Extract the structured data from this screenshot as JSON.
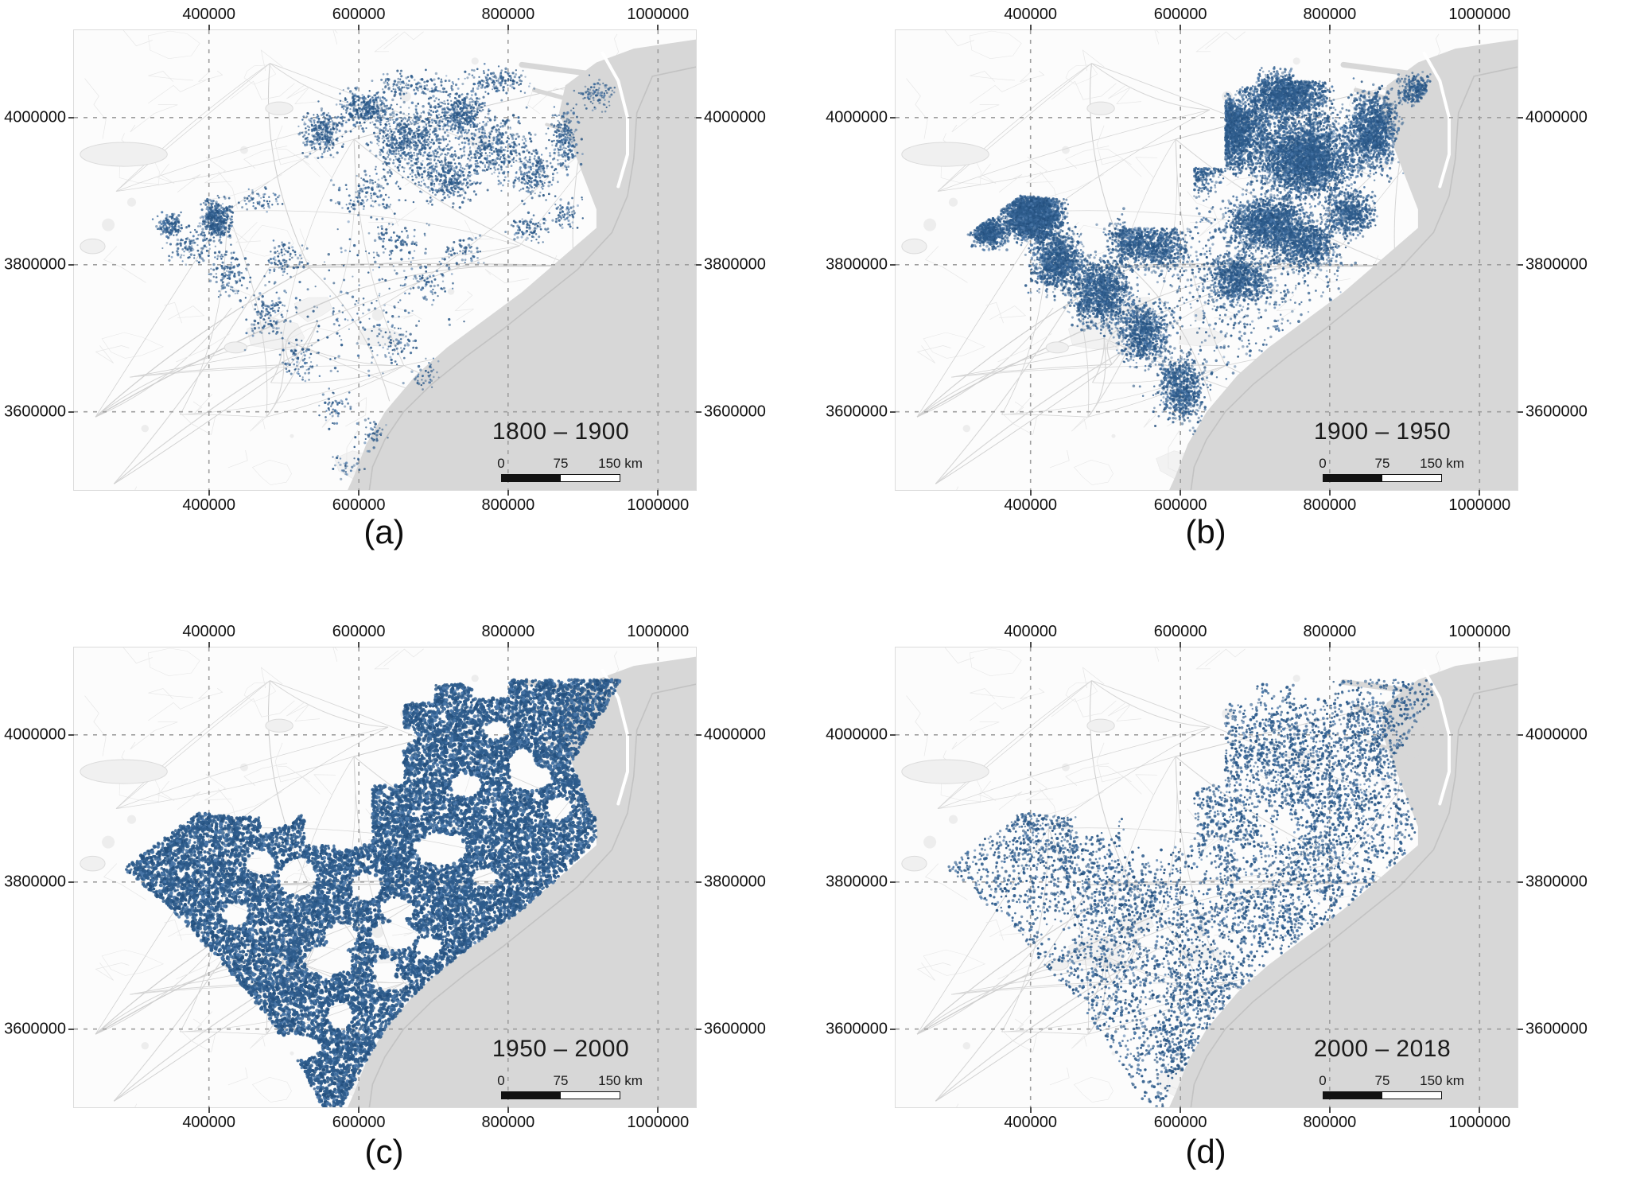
{
  "figure": {
    "description": "Four-panel map time series of mapped feature density over the Carolinas coastal plain, shown on a light road basemap with UTM coordinate grid.",
    "axis": {
      "x_ticks": [
        {
          "label": "400000",
          "pos": 0.217
        },
        {
          "label": "600000",
          "pos": 0.458
        },
        {
          "label": "800000",
          "pos": 0.698
        },
        {
          "label": "1000000",
          "pos": 0.939
        }
      ],
      "y_ticks": [
        {
          "label": "4000000",
          "pos": 0.19
        },
        {
          "label": "3800000",
          "pos": 0.51
        },
        {
          "label": "3600000",
          "pos": 0.83
        }
      ]
    },
    "scalebar": {
      "start_label": "0",
      "mid_label": "75",
      "end_label": "150 km"
    },
    "colors": {
      "data": "#2E5C8C",
      "data_dark": "#24507E",
      "data_light": "#4A77A8",
      "ocean": "#D7D7D7",
      "land": "#FCFCFC",
      "road": "#D6D6D6",
      "road_light": "#E6E6E6",
      "grid": "#9E9E9E",
      "contour": "#C2C2C2",
      "text": "#111111"
    },
    "geometry": {
      "coast": [
        [
          100,
          2
        ],
        [
          90,
          4
        ],
        [
          84,
          7
        ],
        [
          79,
          12
        ],
        [
          78,
          18
        ],
        [
          80,
          25
        ],
        [
          82,
          32
        ],
        [
          84,
          39
        ],
        [
          84,
          43
        ],
        [
          78,
          50
        ],
        [
          72,
          57
        ],
        [
          66,
          63
        ],
        [
          60,
          69
        ],
        [
          55,
          75
        ],
        [
          50,
          83
        ],
        [
          47,
          90
        ],
        [
          45,
          97
        ],
        [
          44,
          100
        ]
      ],
      "contour": [
        [
          100,
          8
        ],
        [
          93,
          10
        ],
        [
          90.5,
          18
        ],
        [
          90,
          28
        ],
        [
          89,
          36
        ],
        [
          86.5,
          44
        ],
        [
          81,
          52
        ],
        [
          75,
          58.5
        ],
        [
          69,
          65
        ],
        [
          63,
          71
        ],
        [
          57.5,
          77
        ],
        [
          53,
          83
        ],
        [
          50,
          89
        ],
        [
          48,
          95
        ],
        [
          47.5,
          100
        ]
      ],
      "banks": [
        [
          85,
          5
        ],
        [
          87.5,
          11
        ],
        [
          89,
          19
        ],
        [
          89,
          27
        ],
        [
          87.5,
          34
        ]
      ],
      "estuaries": [
        [
          [
            86,
            10
          ],
          [
            72,
            7.5
          ]
        ],
        [
          [
            85,
            17
          ],
          [
            74,
            13
          ]
        ],
        [
          [
            84.5,
            24
          ],
          [
            76,
            20.5
          ]
        ]
      ],
      "lakes": [
        [
          8,
          27,
          7,
          2.6
        ],
        [
          33,
          17,
          2.2,
          1.4
        ],
        [
          3,
          47,
          2,
          1.6
        ],
        [
          26,
          69,
          1.8,
          1.2
        ]
      ],
      "footprint": [
        [
          8,
          48
        ],
        [
          20,
          36
        ],
        [
          30,
          37
        ],
        [
          30,
          41
        ],
        [
          35,
          38
        ],
        [
          37,
          36
        ],
        [
          37,
          43
        ],
        [
          48,
          43
        ],
        [
          48,
          30
        ],
        [
          53,
          30
        ],
        [
          53,
          12
        ],
        [
          58,
          12
        ],
        [
          58,
          8
        ],
        [
          64,
          8
        ],
        [
          64,
          11
        ],
        [
          70,
          11
        ],
        [
          70,
          7
        ],
        [
          88,
          7
        ],
        [
          86,
          12
        ],
        [
          83,
          18
        ],
        [
          80,
          25
        ],
        [
          82,
          32
        ],
        [
          84,
          38
        ],
        [
          84,
          42
        ],
        [
          78,
          50
        ],
        [
          72,
          57
        ],
        [
          66,
          63
        ],
        [
          60,
          69
        ],
        [
          55,
          75
        ],
        [
          50,
          83
        ],
        [
          47,
          90
        ],
        [
          44,
          97
        ],
        [
          43,
          100
        ],
        [
          40,
          100
        ],
        [
          36,
          90
        ],
        [
          31,
          80
        ],
        [
          26,
          72
        ],
        [
          20,
          63
        ],
        [
          14,
          55
        ]
      ]
    },
    "panels": [
      {
        "id": "a",
        "caption": "(a)",
        "period": "1800 – 1900",
        "layer": {
          "mode": "clusters",
          "seed": 11,
          "dot_r": 1.4,
          "clip": false,
          "clusters": [
            [
              15.5,
              42.5,
              2.6,
              3,
              170
            ],
            [
              23,
              41,
              3,
              5,
              430
            ],
            [
              19,
              47,
              5,
              5,
              120
            ],
            [
              25,
              53,
              4,
              7,
              130
            ],
            [
              31,
              62,
              5,
              8,
              130
            ],
            [
              36,
              72,
              4,
              6,
              70
            ],
            [
              42,
              82,
              3,
              5,
              50
            ],
            [
              34,
              50,
              4,
              5,
              90
            ],
            [
              30,
              37,
              4,
              3,
              60
            ],
            [
              40,
              22,
              4,
              6,
              300
            ],
            [
              47,
              17,
              5,
              5,
              350
            ],
            [
              54,
              24,
              7,
              9,
              550
            ],
            [
              62,
              18,
              6,
              6,
              400
            ],
            [
              60,
              32,
              7,
              7,
              350
            ],
            [
              68,
              26,
              6,
              8,
              350
            ],
            [
              55,
              12,
              8,
              3.5,
              150
            ],
            [
              68,
              11,
              6,
              3.5,
              150
            ],
            [
              74,
              31,
              4,
              7,
              200
            ],
            [
              79,
              24,
              3,
              8,
              220
            ],
            [
              84,
              14,
              3.5,
              4,
              90
            ],
            [
              73,
              43,
              4,
              4,
              90
            ],
            [
              79,
              40,
              3,
              4,
              70
            ],
            [
              47,
              36,
              6,
              6,
              120
            ],
            [
              52,
              46,
              6,
              6,
              90
            ],
            [
              57,
              55,
              5,
              5,
              70
            ],
            [
              63,
              48,
              4,
              4,
              60
            ],
            [
              52,
              68,
              4,
              5,
              60
            ],
            [
              57,
              75,
              3,
              4,
              40
            ],
            [
              48,
              88,
              3,
              4,
              45
            ],
            [
              44,
              95,
              3,
              3,
              30
            ],
            [
              48,
              60,
              14,
              20,
              160
            ],
            [
              60,
              25,
              16,
              14,
              200
            ]
          ]
        }
      },
      {
        "id": "b",
        "caption": "(b)",
        "period": "1900 – 1950",
        "layer": {
          "mode": "clusters",
          "seed": 22,
          "dot_r": 1.5,
          "clip": true,
          "clusters": [
            [
              22,
              40,
              5.5,
              6.5,
              2800
            ],
            [
              15,
              44,
              3.5,
              4,
              600
            ],
            [
              26,
              50,
              5,
              8,
              1100
            ],
            [
              33,
              57,
              6,
              9,
              1200
            ],
            [
              40,
              66,
              5,
              8,
              800
            ],
            [
              46,
              78,
              4.5,
              8,
              700
            ],
            [
              51,
              88,
              3.5,
              5,
              300
            ],
            [
              38,
              46,
              5,
              6,
              600
            ],
            [
              43,
              47,
              5,
              7,
              500
            ],
            [
              52,
              22,
              9,
              10,
              3800
            ],
            [
              63,
              14,
              8,
              6,
              1600
            ],
            [
              66,
              28,
              9,
              10,
              2800
            ],
            [
              77,
              22,
              4.5,
              10,
              1300
            ],
            [
              60,
              42,
              8,
              7,
              1500
            ],
            [
              55,
              54,
              6,
              7,
              800
            ],
            [
              66,
              47,
              6,
              6,
              800
            ],
            [
              73,
              40,
              5,
              6,
              600
            ],
            [
              84,
              13,
              4,
              4,
              300
            ],
            [
              48,
              30,
              5,
              7,
              500
            ],
            [
              55,
              55,
              22,
              28,
              700
            ],
            [
              65,
              25,
              18,
              14,
              600
            ]
          ]
        }
      },
      {
        "id": "c",
        "caption": "(c)",
        "period": "1950 – 2000",
        "layer": {
          "mode": "fill",
          "seed": 33,
          "dot_r": 2.1,
          "attempts": 42000,
          "accept": 0.93,
          "rand_holes": 10,
          "holes": [
            [
              59,
              44,
              4,
              3.5
            ],
            [
              47,
              52,
              2.5,
              3
            ],
            [
              36,
              50,
              3,
              4
            ],
            [
              52,
              57,
              2.5,
              2.5
            ],
            [
              43,
              63,
              2.5,
              3
            ],
            [
              50,
              70,
              2,
              2.5
            ],
            [
              63,
              30,
              2.5,
              2.5
            ],
            [
              72,
              25,
              2,
              3
            ],
            [
              68,
              18,
              2,
              2
            ],
            [
              30,
              47,
              2.5,
              2.5
            ],
            [
              26,
              58,
              2,
              2.5
            ],
            [
              57,
              65,
              2,
              2
            ],
            [
              44,
              42,
              2,
              2
            ],
            [
              78,
              35,
              2,
              2.5
            ],
            [
              66,
              50,
              2,
              2
            ]
          ]
        }
      },
      {
        "id": "d",
        "caption": "(d)",
        "period": "2000 – 2018",
        "layer": {
          "mode": "patchy",
          "seed": 44,
          "dot_r": 1.6,
          "attempts": 30000,
          "base": 0.34,
          "rand_gaps": 8,
          "boosts": [
            [
              22,
              41,
              8,
              8,
              0.45
            ],
            [
              60,
              24,
              13,
              11,
              0.5
            ],
            [
              70,
              35,
              8,
              8,
              0.4
            ],
            [
              76,
              20,
              5,
              9,
              0.5
            ],
            [
              38,
              60,
              9,
              10,
              0.3
            ],
            [
              50,
              74,
              7,
              9,
              0.35
            ],
            [
              46,
              88,
              4,
              6,
              0.45
            ],
            [
              58,
              58,
              7,
              7,
              0.35
            ],
            [
              66,
              48,
              6,
              6,
              0.4
            ],
            [
              30,
              48,
              6,
              7,
              0.3
            ],
            [
              52,
              38,
              7,
              8,
              0.25
            ]
          ],
          "gaps": [
            [
              44,
              26,
              6,
              8,
              0.5
            ],
            [
              33,
              38,
              5,
              5,
              0.4
            ],
            [
              57,
              30,
              4,
              4,
              0.3
            ],
            [
              48,
              50,
              4,
              4,
              0.3
            ],
            [
              40,
              44,
              5,
              4,
              0.4
            ],
            [
              62,
              40,
              4,
              4,
              0.3
            ],
            [
              26,
              62,
              4,
              5,
              0.35
            ],
            [
              73,
              28,
              3,
              4,
              0.3
            ]
          ]
        }
      }
    ]
  }
}
